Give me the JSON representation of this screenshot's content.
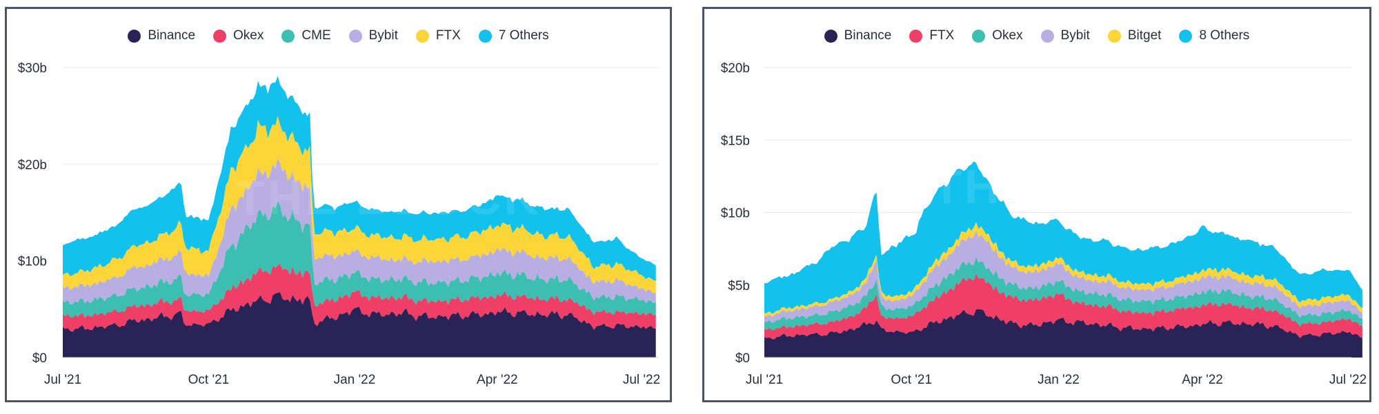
{
  "chart_data": [
    {
      "type": "area",
      "stacked": true,
      "x_labels": [
        "Jul '21",
        "Oct '21",
        "Jan '22",
        "Apr '22",
        "Jul '22"
      ],
      "y_ticks": [
        "$0",
        "$10b",
        "$20b",
        "$30b"
      ],
      "ylim": [
        0,
        30
      ],
      "grid": true,
      "legend_position": "top-center",
      "watermark": "THE BLOCK",
      "series": [
        {
          "name": "Binance",
          "color": "#2a2456"
        },
        {
          "name": "Okex",
          "color": "#ef3f66"
        },
        {
          "name": "CME",
          "color": "#3cbfb0"
        },
        {
          "name": "Bybit",
          "color": "#b8aee2"
        },
        {
          "name": "FTX",
          "color": "#fcd639"
        },
        {
          "name": "7 Others",
          "color": "#12c2ec"
        }
      ],
      "dates": [
        "2021-07-01",
        "2021-07-15",
        "2021-08-01",
        "2021-08-15",
        "2021-09-01",
        "2021-09-14",
        "2021-09-16",
        "2021-10-01",
        "2021-10-15",
        "2021-11-01",
        "2021-11-15",
        "2021-12-01",
        "2021-12-04",
        "2021-12-06",
        "2021-12-20",
        "2022-01-01",
        "2022-01-15",
        "2022-02-01",
        "2022-02-15",
        "2022-03-01",
        "2022-03-15",
        "2022-04-01",
        "2022-04-15",
        "2022-05-01",
        "2022-05-15",
        "2022-06-01",
        "2022-06-15",
        "2022-07-01",
        "2022-07-10"
      ],
      "values": {
        "Binance": [
          2.9,
          3.0,
          3.3,
          3.8,
          4.2,
          4.5,
          3.4,
          3.4,
          4.9,
          5.9,
          6.3,
          5.9,
          5.9,
          3.6,
          4.2,
          5.0,
          4.4,
          4.6,
          4.2,
          4.3,
          4.4,
          4.7,
          4.6,
          4.4,
          4.5,
          3.2,
          3.3,
          3.2,
          2.9
        ],
        "Okex": [
          1.4,
          1.3,
          1.4,
          1.5,
          1.5,
          1.5,
          1.4,
          1.4,
          2.2,
          2.9,
          3.0,
          2.8,
          2.8,
          1.9,
          1.8,
          1.8,
          1.7,
          1.6,
          1.6,
          1.6,
          1.7,
          1.7,
          1.7,
          1.6,
          1.6,
          1.5,
          1.4,
          1.4,
          1.4
        ],
        "CME": [
          1.4,
          1.5,
          1.6,
          1.8,
          2.0,
          2.2,
          1.7,
          1.7,
          4.4,
          5.8,
          6.0,
          4.9,
          4.9,
          2.3,
          2.1,
          2.0,
          1.9,
          1.9,
          1.9,
          1.9,
          2.0,
          2.3,
          2.2,
          2.0,
          2.1,
          1.5,
          1.6,
          1.4,
          1.2
        ],
        "Bybit": [
          1.5,
          1.6,
          1.8,
          2.2,
          2.3,
          2.6,
          2.2,
          1.9,
          3.7,
          4.3,
          4.5,
          3.9,
          3.9,
          2.6,
          2.4,
          2.2,
          2.2,
          2.0,
          2.2,
          2.2,
          2.2,
          2.4,
          2.4,
          2.2,
          2.2,
          1.6,
          1.7,
          1.2,
          1.0
        ],
        "FTX": [
          1.3,
          1.5,
          1.8,
          2.2,
          2.5,
          3.0,
          2.7,
          2.6,
          4.0,
          4.7,
          4.2,
          3.8,
          3.8,
          2.6,
          2.5,
          2.4,
          2.3,
          2.3,
          2.3,
          2.3,
          2.4,
          2.6,
          2.5,
          2.3,
          2.3,
          1.6,
          1.7,
          1.4,
          1.2
        ],
        "7 Others": [
          3.2,
          3.4,
          3.5,
          3.8,
          4.0,
          4.3,
          3.3,
          3.2,
          4.3,
          4.3,
          4.4,
          3.8,
          3.8,
          2.6,
          2.6,
          2.8,
          2.6,
          2.7,
          2.7,
          2.7,
          2.7,
          3.0,
          2.9,
          2.8,
          2.8,
          2.5,
          2.6,
          1.7,
          1.8
        ]
      }
    },
    {
      "type": "area",
      "stacked": true,
      "x_labels": [
        "Jul '21",
        "Oct '21",
        "Jan '22",
        "Apr '22",
        "Jul '22"
      ],
      "y_ticks": [
        "$0",
        "$5b",
        "$10b",
        "$15b",
        "$20b"
      ],
      "ylim": [
        0,
        20
      ],
      "grid": true,
      "legend_position": "top-center",
      "watermark": "THE BLOCK",
      "series": [
        {
          "name": "Binance",
          "color": "#2a2456"
        },
        {
          "name": "FTX",
          "color": "#ef3f66"
        },
        {
          "name": "Okex",
          "color": "#3cbfb0"
        },
        {
          "name": "Bybit",
          "color": "#b8aee2"
        },
        {
          "name": "Bitget",
          "color": "#fcd639"
        },
        {
          "name": "8 Others",
          "color": "#12c2ec"
        }
      ],
      "dates": [
        "2021-07-01",
        "2021-07-15",
        "2021-08-01",
        "2021-08-15",
        "2021-09-01",
        "2021-09-09",
        "2021-09-12",
        "2021-09-20",
        "2021-10-01",
        "2021-10-15",
        "2021-11-01",
        "2021-11-10",
        "2021-11-20",
        "2021-12-01",
        "2021-12-15",
        "2022-01-01",
        "2022-01-15",
        "2022-02-01",
        "2022-02-15",
        "2022-03-01",
        "2022-03-15",
        "2022-04-01",
        "2022-04-15",
        "2022-05-01",
        "2022-05-15",
        "2022-06-01",
        "2022-06-15",
        "2022-07-01",
        "2022-07-10"
      ],
      "values": {
        "Binance": [
          1.3,
          1.5,
          1.6,
          1.7,
          2.2,
          2.6,
          1.9,
          1.8,
          1.7,
          2.4,
          3.0,
          3.2,
          2.9,
          2.4,
          2.2,
          2.6,
          2.4,
          2.2,
          2.0,
          2.0,
          2.1,
          2.3,
          2.4,
          2.3,
          2.2,
          1.5,
          1.6,
          1.8,
          1.3
        ],
        "FTX": [
          0.6,
          0.6,
          0.7,
          0.8,
          1.0,
          1.8,
          0.9,
          0.9,
          1.1,
          1.6,
          2.2,
          2.4,
          2.1,
          1.8,
          1.7,
          1.8,
          1.3,
          1.3,
          1.1,
          1.1,
          1.2,
          1.3,
          1.3,
          1.1,
          1.1,
          0.8,
          0.8,
          0.9,
          0.8
        ],
        "Okex": [
          0.5,
          0.6,
          0.6,
          0.7,
          0.8,
          1.0,
          0.7,
          0.6,
          0.7,
          0.9,
          1.1,
          1.1,
          1.0,
          0.9,
          0.8,
          0.9,
          0.8,
          0.8,
          0.8,
          0.8,
          0.8,
          0.9,
          0.9,
          0.8,
          0.8,
          0.6,
          0.6,
          0.6,
          0.5
        ],
        "Bybit": [
          0.4,
          0.5,
          0.6,
          0.7,
          0.8,
          1.4,
          0.6,
          0.6,
          0.7,
          1.2,
          1.6,
          1.9,
          1.7,
          1.2,
          1.1,
          1.2,
          0.9,
          0.9,
          0.8,
          0.8,
          0.9,
          1.0,
          1.0,
          0.9,
          0.9,
          0.6,
          0.7,
          0.7,
          0.4
        ],
        "Bitget": [
          0.2,
          0.2,
          0.2,
          0.2,
          0.3,
          0.4,
          0.3,
          0.3,
          0.3,
          0.4,
          0.5,
          0.6,
          0.5,
          0.4,
          0.4,
          0.4,
          0.4,
          0.4,
          0.4,
          0.4,
          0.4,
          0.5,
          0.5,
          0.5,
          0.5,
          0.4,
          0.4,
          0.4,
          0.3
        ],
        "8 Others": [
          2.2,
          2.2,
          2.8,
          3.7,
          3.7,
          4.2,
          2.7,
          3.5,
          3.9,
          4.7,
          4.6,
          4.2,
          3.6,
          3.3,
          3.0,
          2.6,
          2.4,
          2.4,
          2.3,
          2.4,
          2.5,
          2.9,
          2.4,
          2.4,
          2.2,
          1.8,
          1.9,
          1.7,
          1.4
        ]
      }
    }
  ]
}
